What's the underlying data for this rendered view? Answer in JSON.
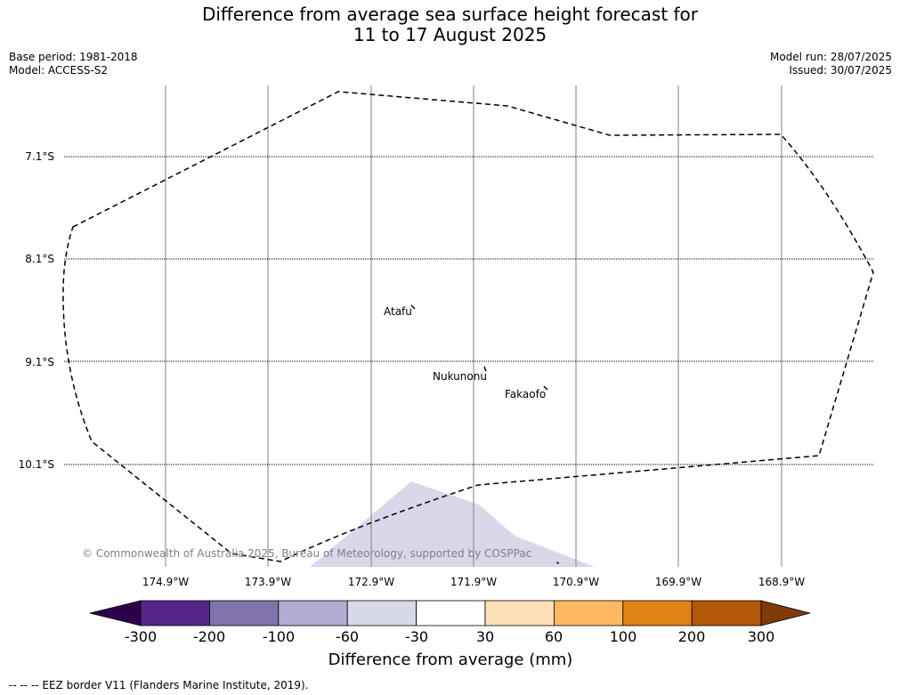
{
  "title": {
    "line1": "Difference from average sea surface height forecast for",
    "line2": "11 to 17 August 2025"
  },
  "meta_left": {
    "base_period": "Base period: 1981-2018",
    "model": "Model: ACCESS-S2"
  },
  "meta_right": {
    "model_run": "Model run: 28/07/2025",
    "issued": "Issued: 30/07/2025"
  },
  "map": {
    "lat_labels": [
      "7.1°S",
      "8.1°S",
      "9.1°S",
      "10.1°S"
    ],
    "lon_labels": [
      "174.9°W",
      "173.9°W",
      "172.9°W",
      "171.9°W",
      "170.9°W",
      "169.9°W",
      "168.9°W"
    ],
    "places": {
      "atafu": "Atafu",
      "nukunonu": "Nukunonu",
      "fakaofo": "Fakaofo"
    },
    "copyright": "© Commonwealth of Australia 2025, Bureau of Meteorology, supported by COSPPac",
    "anomaly_fill_color": "#d8d8ea"
  },
  "colorbar": {
    "ticks": [
      "-300",
      "-200",
      "-100",
      "-60",
      "-30",
      "30",
      "60",
      "100",
      "200",
      "300"
    ],
    "colors": {
      "below_min": "#2d004b",
      "bins": [
        "#542788",
        "#8073ac",
        "#b2abd2",
        "#d8daeb",
        "#ffffff",
        "#fee0b6",
        "#fdb863",
        "#e08214",
        "#b35806"
      ],
      "above_max": "#7f3b08"
    },
    "title": "Difference from average (mm)"
  },
  "footer": {
    "legend_text": "--  --  -- EEZ border V11 (Flanders Marine Institute, 2019)."
  }
}
